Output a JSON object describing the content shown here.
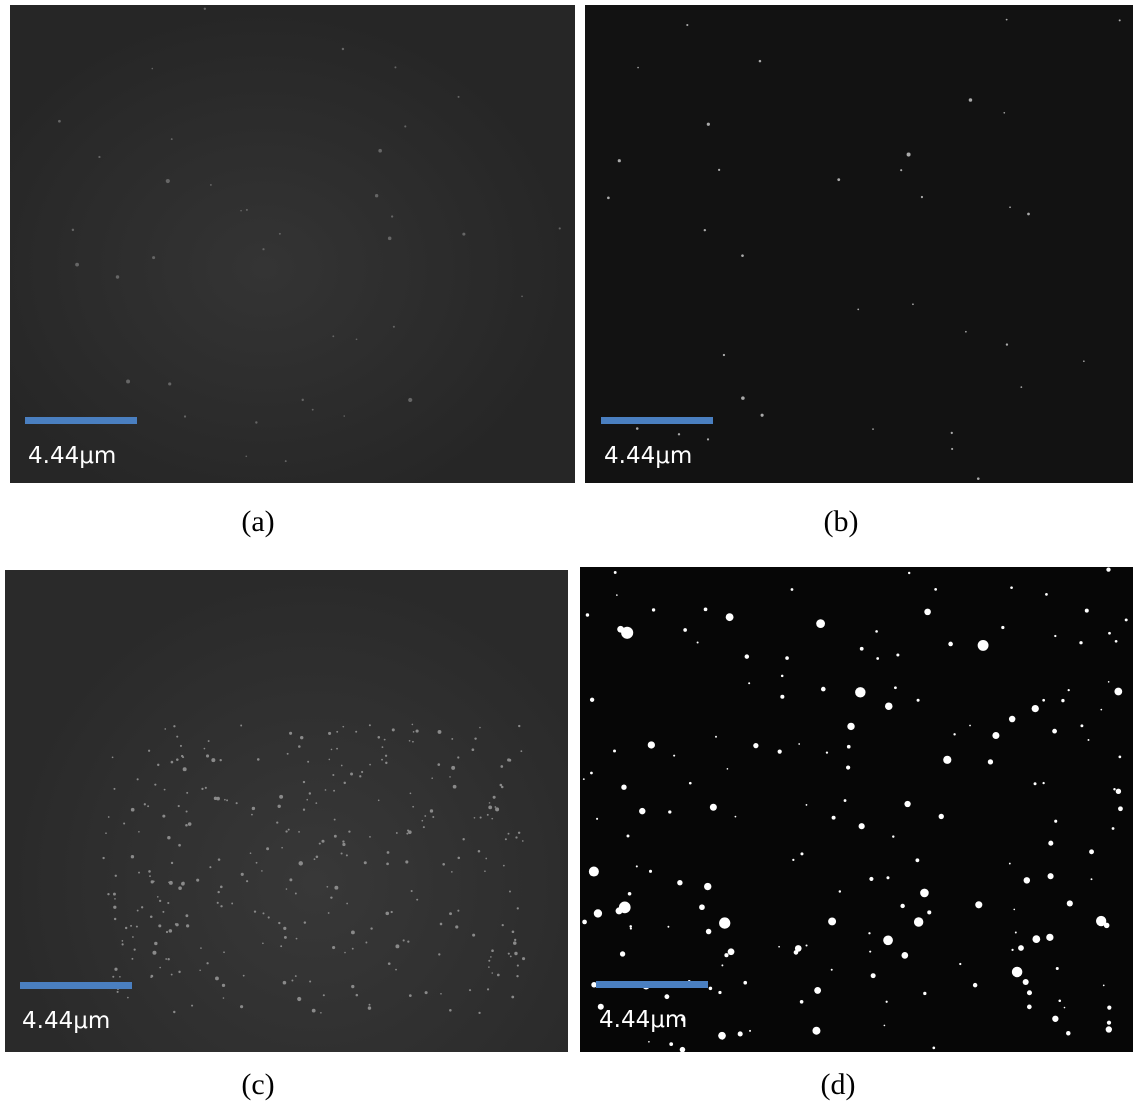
{
  "panels": [
    {
      "label": "(a)",
      "scale_bar": "4.44μm"
    },
    {
      "label": "(b)",
      "scale_bar": "4.44μm"
    },
    {
      "label": "(c)",
      "scale_bar": "4.44μm"
    },
    {
      "label": "(d)",
      "scale_bar": "4.44μm"
    }
  ]
}
